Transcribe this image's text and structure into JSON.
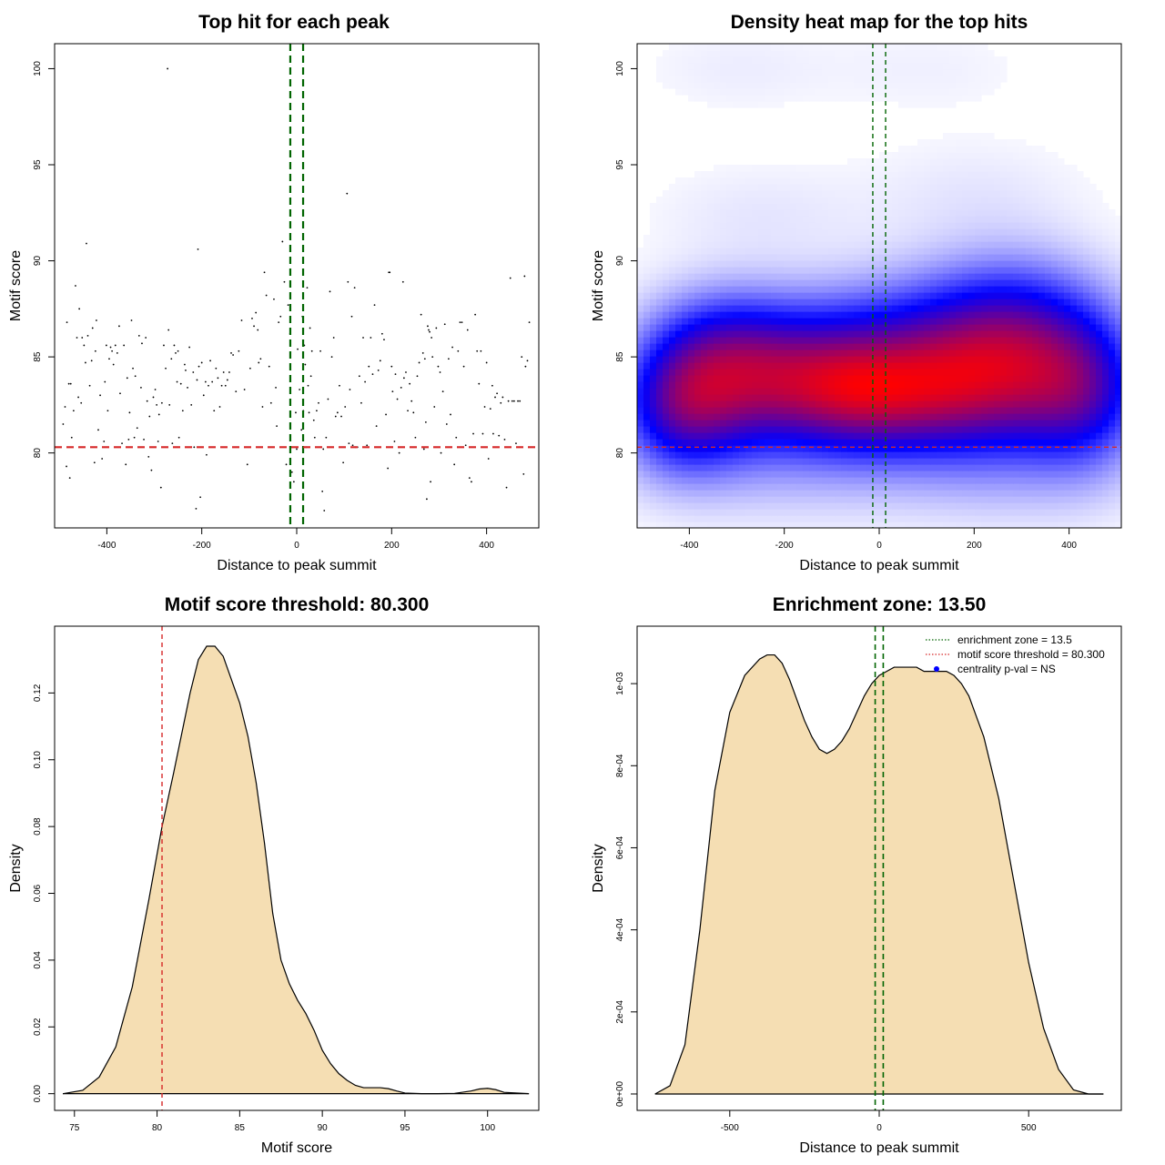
{
  "chart_data": [
    {
      "type": "scatter",
      "title": "Top hit for each peak",
      "xlabel": "Distance to peak summit",
      "ylabel": "Motif score",
      "xlim": [
        -510,
        510
      ],
      "ylim": [
        76.1,
        101.3
      ],
      "xticks": [
        -400,
        -200,
        0,
        200,
        400
      ],
      "yticks": [
        80,
        85,
        90,
        95,
        100
      ],
      "hlines": [
        {
          "y": 80.3,
          "color": "#d62728"
        }
      ],
      "vlines": [
        {
          "x": -13.5,
          "color": "#006400"
        },
        {
          "x": 13.5,
          "color": "#006400"
        }
      ],
      "grid": false
    },
    {
      "type": "heatmap",
      "title": "Density heat map for the top hits",
      "xlabel": "Distance to peak summit",
      "ylabel": "Motif score",
      "xlim": [
        -510,
        510
      ],
      "ylim": [
        76.1,
        101.3
      ],
      "xticks": [
        -400,
        -200,
        0,
        200,
        400
      ],
      "yticks": [
        80,
        85,
        90,
        95,
        100
      ],
      "hlines": [
        {
          "y": 80.3,
          "color": "#d62728"
        }
      ],
      "vlines": [
        {
          "x": -13.5,
          "color": "#006400"
        },
        {
          "x": 13.5,
          "color": "#006400"
        }
      ],
      "colors": [
        "#ffffff",
        "#0000ff",
        "#ff0000"
      ]
    },
    {
      "type": "area",
      "title": "Motif score threshold: 80.300",
      "xlabel": "Motif score",
      "ylabel": "Density",
      "xlim": [
        73.8,
        103.1
      ],
      "ylim": [
        -0.005,
        0.14
      ],
      "xticks": [
        75,
        80,
        85,
        90,
        95,
        100
      ],
      "yticks": [
        "0.00",
        "0.02",
        "0.04",
        "0.06",
        "0.08",
        "0.10",
        "0.12"
      ],
      "fill": "#f5deb3",
      "vlines": [
        {
          "x": 80.3,
          "color": "#d62728"
        }
      ],
      "x": [
        74.3,
        75.5,
        76.5,
        77.5,
        78.5,
        79.5,
        80.3,
        81,
        81.5,
        82,
        82.5,
        83,
        83.5,
        84,
        84.5,
        85,
        85.5,
        86,
        86.5,
        87,
        87.5,
        88,
        88.5,
        89,
        89.5,
        90,
        90.5,
        91,
        91.5,
        92,
        92.5,
        93,
        93.5,
        94,
        94.5,
        95,
        96,
        97,
        98,
        99,
        99.5,
        100,
        100.5,
        101,
        102.5
      ],
      "y": [
        0.0,
        0.001,
        0.005,
        0.014,
        0.032,
        0.058,
        0.08,
        0.096,
        0.108,
        0.12,
        0.13,
        0.134,
        0.134,
        0.131,
        0.124,
        0.117,
        0.107,
        0.093,
        0.075,
        0.054,
        0.04,
        0.033,
        0.028,
        0.024,
        0.019,
        0.013,
        0.009,
        0.006,
        0.004,
        0.0025,
        0.0018,
        0.0018,
        0.0018,
        0.0015,
        0.0008,
        0.0002,
        0.0,
        0.0,
        0.0001,
        0.0008,
        0.0014,
        0.0016,
        0.0012,
        0.0004,
        0.0
      ]
    },
    {
      "type": "area",
      "title": "Enrichment zone: 13.50",
      "xlabel": "Distance to peak summit",
      "ylabel": "Density",
      "xlim": [
        -810,
        810
      ],
      "ylim": [
        -4e-05,
        0.00114
      ],
      "xticks": [
        -500,
        0,
        500
      ],
      "yticks": [
        "0e+00",
        "2e-04",
        "4e-04",
        "6e-04",
        "8e-04",
        "1e-03"
      ],
      "fill": "#f5deb3",
      "vlines": [
        {
          "x": -13.5,
          "color": "#006400"
        },
        {
          "x": 13.5,
          "color": "#006400"
        }
      ],
      "legend": [
        {
          "label": "enrichment zone = 13.5",
          "color": "#006400",
          "style": "dotted-line"
        },
        {
          "label": "motif score threshold = 80.300",
          "color": "#d62728",
          "style": "dotted-line"
        },
        {
          "label": "centrality p-val = NS",
          "color": "#0000ff",
          "style": "point"
        }
      ],
      "legend_position": "top-right",
      "x": [
        -750,
        -700,
        -650,
        -600,
        -550,
        -500,
        -450,
        -400,
        -375,
        -350,
        -325,
        -300,
        -275,
        -250,
        -225,
        -200,
        -175,
        -150,
        -125,
        -100,
        -75,
        -50,
        -25,
        0,
        25,
        50,
        75,
        100,
        125,
        150,
        175,
        200,
        225,
        250,
        275,
        300,
        325,
        350,
        400,
        450,
        500,
        550,
        600,
        650,
        700,
        750
      ],
      "y": [
        0.0,
        2e-05,
        0.00012,
        0.0004,
        0.00074,
        0.00093,
        0.00102,
        0.00106,
        0.00107,
        0.00107,
        0.00105,
        0.00101,
        0.00096,
        0.00091,
        0.00087,
        0.00084,
        0.00083,
        0.00084,
        0.00086,
        0.00089,
        0.00093,
        0.00097,
        0.001,
        0.00102,
        0.00103,
        0.00104,
        0.00104,
        0.00104,
        0.00104,
        0.00103,
        0.00103,
        0.00103,
        0.00103,
        0.00102,
        0.001,
        0.00097,
        0.00092,
        0.00087,
        0.00072,
        0.00052,
        0.00032,
        0.00016,
        6e-05,
        1e-05,
        0.0,
        0.0
      ]
    }
  ],
  "scatter_points": [
    [
      -492,
      81.5
    ],
    [
      -488,
      82.4
    ],
    [
      -485,
      79.3
    ],
    [
      -484,
      86.8
    ],
    [
      -480,
      83.6
    ],
    [
      -478,
      78.7
    ],
    [
      -476,
      83.6
    ],
    [
      -474,
      80.8
    ],
    [
      -470,
      82.2
    ],
    [
      -466,
      88.7
    ],
    [
      -463,
      86.0
    ],
    [
      -460,
      82.9
    ],
    [
      -458,
      87.5
    ],
    [
      -454,
      82.6
    ],
    [
      -452,
      86.0
    ],
    [
      -448,
      85.6
    ],
    [
      -445,
      84.7
    ],
    [
      -443,
      90.9
    ],
    [
      -440,
      86.1
    ],
    [
      -436,
      83.5
    ],
    [
      -432,
      84.8
    ],
    [
      -430,
      86.5
    ],
    [
      -426,
      79.5
    ],
    [
      -424,
      85.3
    ],
    [
      -422,
      86.9
    ],
    [
      -418,
      81.2
    ],
    [
      -414,
      83.0
    ],
    [
      -410,
      79.7
    ],
    [
      -406,
      80.6
    ],
    [
      -404,
      83.7
    ],
    [
      -401,
      85.6
    ],
    [
      -398,
      82.2
    ],
    [
      -395,
      84.9
    ],
    [
      -392,
      85.5
    ],
    [
      -389,
      85.3
    ],
    [
      -386,
      84.6
    ],
    [
      -382,
      85.6
    ],
    [
      -378,
      85.2
    ],
    [
      -374,
      86.6
    ],
    [
      -372,
      83.1
    ],
    [
      -368,
      80.5
    ],
    [
      -364,
      85.6
    ],
    [
      -360,
      79.4
    ],
    [
      -357,
      83.9
    ],
    [
      -354,
      80.7
    ],
    [
      -352,
      82.1
    ],
    [
      -348,
      86.9
    ],
    [
      -345,
      84.4
    ],
    [
      -342,
      80.8
    ],
    [
      -340,
      84.0
    ],
    [
      -336,
      81.3
    ],
    [
      -332,
      86.1
    ],
    [
      -328,
      83.4
    ],
    [
      -326,
      85.7
    ],
    [
      -322,
      80.7
    ],
    [
      -318,
      86.0
    ],
    [
      -315,
      82.7
    ],
    [
      -312,
      79.8
    ],
    [
      -310,
      81.9
    ],
    [
      -306,
      79.1
    ],
    [
      -302,
      82.9
    ],
    [
      -298,
      83.3
    ],
    [
      -295,
      82.5
    ],
    [
      -292,
      80.6
    ],
    [
      -290,
      82.0
    ],
    [
      -286,
      78.2
    ],
    [
      -284,
      82.6
    ],
    [
      -280,
      85.6
    ],
    [
      -276,
      84.4
    ],
    [
      -272,
      100.0
    ],
    [
      -270,
      86.4
    ],
    [
      -268,
      82.5
    ],
    [
      -264,
      84.9
    ],
    [
      -262,
      80.5
    ],
    [
      -258,
      85.6
    ],
    [
      -255,
      85.2
    ],
    [
      -252,
      83.7
    ],
    [
      -250,
      85.3
    ],
    [
      -248,
      80.8
    ],
    [
      -244,
      83.6
    ],
    [
      -240,
      82.2
    ],
    [
      -236,
      84.6
    ],
    [
      -234,
      84.3
    ],
    [
      -230,
      83.4
    ],
    [
      -226,
      85.5
    ],
    [
      -222,
      82.5
    ],
    [
      -218,
      84.2
    ],
    [
      -216,
      80.3
    ],
    [
      -212,
      77.1
    ],
    [
      -210,
      83.8
    ],
    [
      -208,
      90.6
    ],
    [
      -206,
      84.5
    ],
    [
      -203,
      77.7
    ],
    [
      -200,
      84.7
    ],
    [
      -196,
      83.0
    ],
    [
      -192,
      83.7
    ],
    [
      -190,
      79.9
    ],
    [
      -186,
      83.5
    ],
    [
      -182,
      84.8
    ],
    [
      -178,
      83.7
    ],
    [
      -174,
      82.2
    ],
    [
      -170,
      84.4
    ],
    [
      -166,
      83.9
    ],
    [
      -162,
      82.4
    ],
    [
      -158,
      83.5
    ],
    [
      -154,
      84.2
    ],
    [
      -150,
      83.5
    ],
    [
      -146,
      83.8
    ],
    [
      -142,
      84.2
    ],
    [
      -138,
      85.2
    ],
    [
      -134,
      85.1
    ],
    [
      -128,
      83.2
    ],
    [
      -122,
      85.3
    ],
    [
      -116,
      86.9
    ],
    [
      -110,
      83.3
    ],
    [
      -104,
      79.4
    ],
    [
      -98,
      84.4
    ],
    [
      -94,
      87.0
    ],
    [
      -90,
      86.6
    ],
    [
      -86,
      87.3
    ],
    [
      -82,
      86.4
    ],
    [
      -80,
      84.7
    ],
    [
      -76,
      84.9
    ],
    [
      -72,
      82.4
    ],
    [
      -68,
      89.4
    ],
    [
      -64,
      88.2
    ],
    [
      -58,
      84.5
    ],
    [
      -54,
      82.6
    ],
    [
      -48,
      88.0
    ],
    [
      -44,
      83.4
    ],
    [
      -42,
      81.4
    ],
    [
      -38,
      86.8
    ],
    [
      -34,
      87.1
    ],
    [
      -30,
      91.0
    ],
    [
      -26,
      88.9
    ],
    [
      -22,
      79.4
    ],
    [
      -18,
      87.7
    ],
    [
      -14,
      86.2
    ],
    [
      -10,
      79.0
    ],
    [
      -6,
      78.5
    ],
    [
      -2,
      82.1
    ],
    [
      0,
      80.2
    ],
    [
      2,
      85.4
    ],
    [
      6,
      83.3
    ],
    [
      10,
      81.2
    ],
    [
      12,
      87.1
    ],
    [
      14,
      82.2
    ],
    [
      16,
      85.6
    ],
    [
      18,
      84.6
    ],
    [
      20,
      80.3
    ],
    [
      22,
      88.6
    ],
    [
      24,
      83.5
    ],
    [
      26,
      82.1
    ],
    [
      28,
      86.5
    ],
    [
      30,
      84.0
    ],
    [
      32,
      85.3
    ],
    [
      36,
      81.7
    ],
    [
      38,
      80.8
    ],
    [
      42,
      82.2
    ],
    [
      46,
      82.6
    ],
    [
      50,
      85.3
    ],
    [
      54,
      78.0
    ],
    [
      56,
      80.2
    ],
    [
      58,
      77.0
    ],
    [
      62,
      80.8
    ],
    [
      66,
      82.8
    ],
    [
      70,
      88.4
    ],
    [
      74,
      85.0
    ],
    [
      78,
      86.0
    ],
    [
      82,
      81.9
    ],
    [
      86,
      82.1
    ],
    [
      90,
      83.5
    ],
    [
      94,
      81.9
    ],
    [
      98,
      79.5
    ],
    [
      102,
      82.4
    ],
    [
      106,
      93.5
    ],
    [
      108,
      88.9
    ],
    [
      110,
      80.5
    ],
    [
      112,
      83.3
    ],
    [
      116,
      87.1
    ],
    [
      118,
      80.4
    ],
    [
      122,
      88.6
    ],
    [
      124,
      80.3
    ],
    [
      128,
      80.3
    ],
    [
      132,
      84.0
    ],
    [
      136,
      82.6
    ],
    [
      140,
      86.0
    ],
    [
      144,
      83.7
    ],
    [
      148,
      80.4
    ],
    [
      152,
      84.5
    ],
    [
      156,
      86.0
    ],
    [
      160,
      84.1
    ],
    [
      164,
      87.7
    ],
    [
      168,
      81.4
    ],
    [
      172,
      84.3
    ],
    [
      176,
      84.8
    ],
    [
      180,
      86.2
    ],
    [
      184,
      85.9
    ],
    [
      188,
      82.0
    ],
    [
      192,
      79.2
    ],
    [
      194,
      89.4
    ],
    [
      196,
      89.4
    ],
    [
      200,
      84.5
    ],
    [
      202,
      83.2
    ],
    [
      206,
      80.6
    ],
    [
      208,
      84.1
    ],
    [
      212,
      82.8
    ],
    [
      216,
      80.0
    ],
    [
      220,
      83.4
    ],
    [
      224,
      88.9
    ],
    [
      226,
      83.9
    ],
    [
      230,
      84.2
    ],
    [
      234,
      82.2
    ],
    [
      238,
      83.6
    ],
    [
      242,
      82.7
    ],
    [
      246,
      82.1
    ],
    [
      250,
      80.8
    ],
    [
      254,
      84.0
    ],
    [
      258,
      84.7
    ],
    [
      262,
      87.2
    ],
    [
      266,
      85.2
    ],
    [
      268,
      80.2
    ],
    [
      270,
      84.9
    ],
    [
      272,
      81.6
    ],
    [
      274,
      77.6
    ],
    [
      276,
      86.6
    ],
    [
      278,
      86.4
    ],
    [
      280,
      86.3
    ],
    [
      282,
      78.5
    ],
    [
      284,
      86.0
    ],
    [
      286,
      85.0
    ],
    [
      290,
      82.4
    ],
    [
      294,
      86.5
    ],
    [
      298,
      84.5
    ],
    [
      302,
      84.2
    ],
    [
      304,
      80.0
    ],
    [
      308,
      83.2
    ],
    [
      312,
      86.7
    ],
    [
      316,
      81.5
    ],
    [
      320,
      84.9
    ],
    [
      324,
      82.0
    ],
    [
      328,
      85.5
    ],
    [
      332,
      79.4
    ],
    [
      336,
      80.8
    ],
    [
      340,
      85.3
    ],
    [
      344,
      86.8
    ],
    [
      348,
      86.8
    ],
    [
      352,
      84.5
    ],
    [
      356,
      80.4
    ],
    [
      360,
      86.4
    ],
    [
      364,
      78.7
    ],
    [
      368,
      78.5
    ],
    [
      372,
      81.0
    ],
    [
      376,
      87.2
    ],
    [
      380,
      85.3
    ],
    [
      384,
      83.6
    ],
    [
      388,
      85.3
    ],
    [
      392,
      81.0
    ],
    [
      396,
      82.4
    ],
    [
      400,
      84.7
    ],
    [
      404,
      79.7
    ],
    [
      408,
      82.3
    ],
    [
      412,
      83.5
    ],
    [
      414,
      81.0
    ],
    [
      418,
      82.9
    ],
    [
      422,
      83.1
    ],
    [
      426,
      80.9
    ],
    [
      430,
      82.6
    ],
    [
      434,
      82.9
    ],
    [
      438,
      80.7
    ],
    [
      442,
      78.2
    ],
    [
      446,
      82.7
    ],
    [
      450,
      89.1
    ],
    [
      454,
      82.7
    ],
    [
      458,
      82.7
    ],
    [
      462,
      80.5
    ],
    [
      466,
      82.7
    ],
    [
      470,
      82.7
    ],
    [
      474,
      85.0
    ],
    [
      478,
      78.9
    ],
    [
      480,
      89.2
    ],
    [
      482,
      84.5
    ],
    [
      486,
      84.8
    ],
    [
      490,
      86.8
    ]
  ],
  "heatmap_blobs": [
    [
      -420,
      82.5,
      90,
      2.4,
      1.0
    ],
    [
      -280,
      83.8,
      110,
      2.6,
      0.95
    ],
    [
      -120,
      83.6,
      110,
      2.4,
      0.85
    ],
    [
      0,
      83.2,
      110,
      2.3,
      0.95
    ],
    [
      150,
      83.6,
      110,
      2.6,
      0.95
    ],
    [
      300,
      84.3,
      110,
      3.0,
      1.0
    ],
    [
      440,
      83.3,
      90,
      2.8,
      0.85
    ],
    [
      -350,
      86.0,
      110,
      2.0,
      0.35
    ],
    [
      250,
      87.5,
      150,
      2.3,
      0.35
    ],
    [
      0,
      87.0,
      150,
      2.0,
      0.25
    ],
    [
      -250,
      92.5,
      160,
      1.8,
      0.08
    ],
    [
      200,
      93.5,
      160,
      2.0,
      0.08
    ],
    [
      -300,
      100,
      140,
      1.6,
      0.06
    ],
    [
      100,
      100,
      160,
      1.6,
      0.05
    ],
    [
      -200,
      78.5,
      200,
      1.8,
      0.12
    ],
    [
      250,
      78.3,
      200,
      1.8,
      0.1
    ]
  ]
}
